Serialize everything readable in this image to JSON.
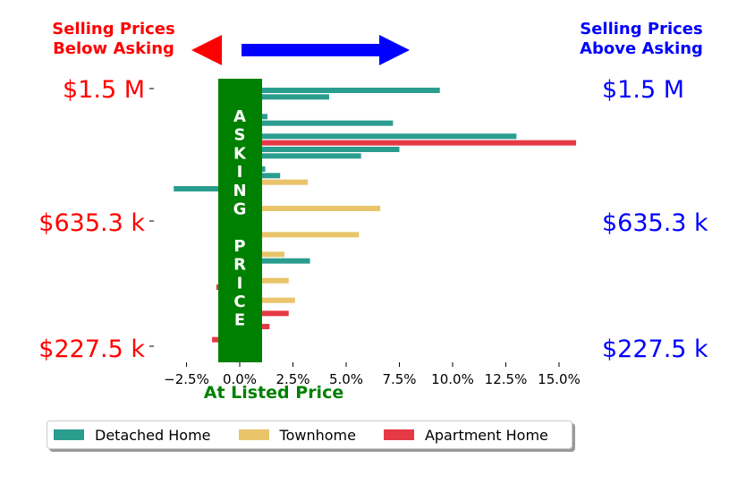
{
  "header": {
    "left": [
      "Selling Prices",
      "Below Asking"
    ],
    "right": [
      "Selling Prices",
      "Above Asking"
    ],
    "left_color": "#ff0000",
    "right_color": "#0000ff",
    "left_arrow_icon": "left-arrow-icon",
    "right_arrow_icon": "right-arrow-icon"
  },
  "price_labels": {
    "left": [
      "$1.5 M",
      "$635.3 k",
      "$227.5 k"
    ],
    "right": [
      "$1.5 M",
      "$635.3 k",
      "$227.5 k"
    ]
  },
  "band": {
    "letters": [
      "A",
      "S",
      "K",
      "I",
      "N",
      "G",
      "",
      "P",
      "R",
      "I",
      "C",
      "E"
    ],
    "color": "#008000"
  },
  "xlabel": "At Listed Price",
  "legend": [
    {
      "name": "Detached Home",
      "color": "#2a9d8f"
    },
    {
      "name": "Townhome",
      "color": "#e9c46a"
    },
    {
      "name": "Apartment Home",
      "color": "#e63946"
    }
  ],
  "chart_data": {
    "type": "bar",
    "orientation": "horizontal",
    "xlim": [
      -4.0,
      16.5
    ],
    "xticks": [
      -2.5,
      0.0,
      2.5,
      5.0,
      7.5,
      10.0,
      12.5,
      15.0
    ],
    "xtick_labels": [
      "−2.5%",
      "0.0%",
      "2.5%",
      "5.0%",
      "7.5%",
      "10.0%",
      "12.5%",
      "15.0%"
    ],
    "bars": [
      {
        "type": "Detached Home",
        "value": 9.4
      },
      {
        "type": "Detached Home",
        "value": 4.2
      },
      {
        "type": "Detached Home",
        "value": 0.8
      },
      {
        "type": "Detached Home",
        "value": 0.8
      },
      {
        "type": "Detached Home",
        "value": 1.3
      },
      {
        "type": "Detached Home",
        "value": 7.2
      },
      {
        "type": "Townhome",
        "value": 0.7
      },
      {
        "type": "Detached Home",
        "value": 13.0
      },
      {
        "type": "Apartment Home",
        "value": 15.8
      },
      {
        "type": "Detached Home",
        "value": 7.5
      },
      {
        "type": "Detached Home",
        "value": 5.7
      },
      {
        "type": "Detached Home",
        "value": 0.7
      },
      {
        "type": "Detached Home",
        "value": 1.2
      },
      {
        "type": "Detached Home",
        "value": 1.9
      },
      {
        "type": "Townhome",
        "value": 3.2
      },
      {
        "type": "Detached Home",
        "value": -3.1
      },
      {
        "type": "Townhome",
        "value": 0.8
      },
      {
        "type": "Townhome",
        "value": 0.8
      },
      {
        "type": "Townhome",
        "value": 6.6
      },
      {
        "type": "Detached Home",
        "value": 0.8
      },
      {
        "type": "Townhome",
        "value": 0.7
      },
      {
        "type": "Townhome",
        "value": 0.8
      },
      {
        "type": "Townhome",
        "value": 5.6
      },
      {
        "type": "Townhome",
        "value": 0.6
      },
      {
        "type": "Townhome",
        "value": 0.6
      },
      {
        "type": "Townhome",
        "value": 2.1
      },
      {
        "type": "Detached Home",
        "value": 3.3
      },
      {
        "type": "Townhome",
        "value": 0.7
      },
      {
        "type": "Apartment Home",
        "value": 0.7
      },
      {
        "type": "Townhome",
        "value": 2.3
      },
      {
        "type": "Apartment Home",
        "value": -1.1
      },
      {
        "type": "Townhome",
        "value": 0.7
      },
      {
        "type": "Townhome",
        "value": 2.6
      },
      {
        "type": "Townhome",
        "value": 0.6
      },
      {
        "type": "Apartment Home",
        "value": 2.3
      },
      {
        "type": "Townhome",
        "value": 0.5
      },
      {
        "type": "Apartment Home",
        "value": 1.4
      },
      {
        "type": "Apartment Home",
        "value": 0.6
      },
      {
        "type": "Apartment Home",
        "value": -1.3
      },
      {
        "type": "Apartment Home",
        "value": 0.3
      }
    ],
    "grid": false,
    "legend_position": "bottom"
  }
}
